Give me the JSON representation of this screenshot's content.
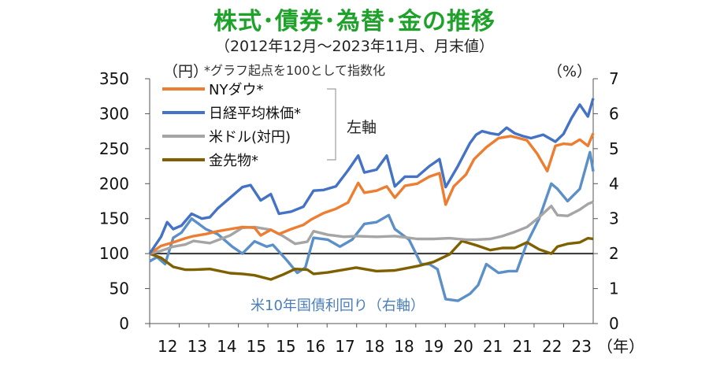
{
  "header": {
    "title": "株式･債券･為替･金の推移",
    "subtitle": "（2012年12月～2023年11月、月末値）",
    "note": "*グラフ起点を100として指数化",
    "left_unit": "（円）",
    "right_unit": "（%）",
    "left_axis_note": "左軸"
  },
  "chart_data": {
    "type": "line",
    "xlabel_suffix": "（年）",
    "x_ticks": [
      "12",
      "13",
      "14",
      "15",
      "15",
      "16",
      "17",
      "18",
      "18",
      "19",
      "20",
      "21",
      "21",
      "22",
      "23"
    ],
    "ylim_left": [
      0,
      350
    ],
    "yticks_left": [
      0,
      50,
      100,
      150,
      200,
      250,
      300,
      350
    ],
    "ylim_right": [
      0,
      7
    ],
    "yticks_right": [
      0,
      1,
      2,
      3,
      4,
      5,
      6,
      7
    ],
    "reference_line": {
      "axis": "left",
      "value": 100,
      "color": "#333333"
    },
    "legend_position": "top-left",
    "x_range": [
      2012.92,
      2023.83
    ],
    "series": [
      {
        "name": "NYダウ*",
        "axis": "left",
        "color": "#ed7d31",
        "x": [
          2012.92,
          2013.2,
          2013.5,
          2013.8,
          2014.0,
          2014.3,
          2014.6,
          2014.9,
          2015.2,
          2015.5,
          2015.65,
          2015.9,
          2016.1,
          2016.4,
          2016.7,
          2016.9,
          2017.2,
          2017.5,
          2017.8,
          2018.05,
          2018.2,
          2018.5,
          2018.75,
          2018.95,
          2019.2,
          2019.5,
          2019.8,
          2020.05,
          2020.2,
          2020.4,
          2020.7,
          2020.9,
          2021.2,
          2021.5,
          2021.8,
          2022.0,
          2022.2,
          2022.45,
          2022.7,
          2022.9,
          2023.1,
          2023.3,
          2023.5,
          2023.7,
          2023.83
        ],
        "values": [
          100,
          111,
          116,
          122,
          125,
          128,
          132,
          135,
          138,
          137,
          126,
          134,
          128,
          135,
          141,
          149,
          158,
          164,
          173,
          201,
          187,
          190,
          196,
          180,
          197,
          200,
          210,
          215,
          170,
          196,
          213,
          235,
          252,
          265,
          268,
          265,
          262,
          243,
          218,
          254,
          257,
          256,
          263,
          254,
          272
        ]
      },
      {
        "name": "日経平均株価*",
        "axis": "left",
        "color": "#4472c4",
        "x": [
          2012.92,
          2013.2,
          2013.35,
          2013.5,
          2013.7,
          2013.95,
          2014.2,
          2014.4,
          2014.6,
          2014.9,
          2015.2,
          2015.4,
          2015.65,
          2015.9,
          2016.1,
          2016.4,
          2016.7,
          2016.95,
          2017.2,
          2017.5,
          2017.8,
          2018.05,
          2018.2,
          2018.5,
          2018.75,
          2018.95,
          2019.2,
          2019.5,
          2019.8,
          2020.05,
          2020.2,
          2020.5,
          2020.8,
          2020.95,
          2021.1,
          2021.3,
          2021.5,
          2021.7,
          2021.9,
          2022.1,
          2022.3,
          2022.6,
          2022.9,
          2023.1,
          2023.3,
          2023.5,
          2023.7,
          2023.83
        ],
        "values": [
          100,
          124,
          145,
          135,
          140,
          157,
          150,
          152,
          165,
          180,
          195,
          198,
          176,
          185,
          157,
          160,
          167,
          190,
          191,
          196,
          219,
          240,
          216,
          220,
          240,
          196,
          210,
          210,
          225,
          235,
          195,
          225,
          258,
          270,
          275,
          272,
          270,
          280,
          272,
          268,
          265,
          270,
          260,
          271,
          294,
          313,
          296,
          322
        ]
      },
      {
        "name": "米ドル(対円)",
        "axis": "left",
        "color": "#a5a5a5",
        "x": [
          2012.92,
          2013.2,
          2013.5,
          2013.8,
          2014.0,
          2014.4,
          2014.9,
          2015.2,
          2015.5,
          2015.9,
          2016.2,
          2016.5,
          2016.8,
          2016.95,
          2017.3,
          2017.7,
          2018.0,
          2018.5,
          2018.95,
          2019.5,
          2019.9,
          2020.3,
          2020.7,
          2020.95,
          2021.3,
          2021.6,
          2021.9,
          2022.2,
          2022.5,
          2022.8,
          2022.95,
          2023.2,
          2023.5,
          2023.7,
          2023.83
        ],
        "values": [
          100,
          104,
          110,
          113,
          118,
          115,
          126,
          137,
          138,
          134,
          125,
          114,
          117,
          132,
          127,
          124,
          125,
          124,
          125,
          121,
          121,
          122,
          120,
          120,
          121,
          125,
          131,
          138,
          152,
          168,
          155,
          154,
          163,
          171,
          174
        ]
      },
      {
        "name": "金先物*",
        "axis": "left",
        "color": "#7f6000",
        "x": [
          2012.92,
          2013.2,
          2013.5,
          2013.8,
          2014.0,
          2014.4,
          2014.9,
          2015.2,
          2015.5,
          2015.9,
          2016.2,
          2016.5,
          2016.8,
          2016.95,
          2017.3,
          2017.7,
          2018.0,
          2018.5,
          2018.95,
          2019.5,
          2019.9,
          2020.3,
          2020.6,
          2020.95,
          2021.3,
          2021.6,
          2021.9,
          2022.2,
          2022.5,
          2022.8,
          2022.95,
          2023.2,
          2023.5,
          2023.7,
          2023.83
        ],
        "values": [
          100,
          94,
          81,
          77,
          77,
          78,
          72,
          71,
          69,
          63,
          70,
          78,
          77,
          71,
          73,
          77,
          80,
          75,
          76,
          82,
          88,
          99,
          118,
          112,
          105,
          108,
          108,
          116,
          106,
          100,
          110,
          114,
          116,
          122,
          121
        ]
      },
      {
        "name": "米10年国債利回り（右軸）",
        "axis": "right",
        "color": "#5b8fc7",
        "x": [
          2012.92,
          2013.1,
          2013.3,
          2013.5,
          2013.7,
          2013.95,
          2014.3,
          2014.6,
          2014.95,
          2015.2,
          2015.5,
          2015.8,
          2015.95,
          2016.3,
          2016.55,
          2016.75,
          2016.95,
          2017.3,
          2017.6,
          2017.9,
          2018.2,
          2018.5,
          2018.8,
          2018.95,
          2019.3,
          2019.6,
          2019.8,
          2020.0,
          2020.2,
          2020.5,
          2020.8,
          2021.0,
          2021.2,
          2021.5,
          2021.75,
          2021.95,
          2022.2,
          2022.5,
          2022.8,
          2022.95,
          2023.2,
          2023.5,
          2023.75,
          2023.83
        ],
        "values": [
          1.78,
          1.9,
          1.7,
          2.45,
          2.6,
          3.0,
          2.7,
          2.55,
          2.2,
          2.0,
          2.35,
          2.2,
          2.25,
          1.8,
          1.45,
          1.6,
          2.45,
          2.4,
          2.2,
          2.4,
          2.85,
          2.9,
          3.1,
          2.7,
          2.4,
          1.7,
          1.7,
          1.55,
          0.7,
          0.65,
          0.85,
          1.1,
          1.7,
          1.45,
          1.5,
          1.5,
          2.3,
          3.0,
          4.0,
          3.85,
          3.5,
          3.85,
          4.9,
          4.35
        ]
      }
    ],
    "annotations": [
      {
        "text": "米10年国債利回り（右軸）",
        "color": "#4a7ebb"
      }
    ]
  }
}
